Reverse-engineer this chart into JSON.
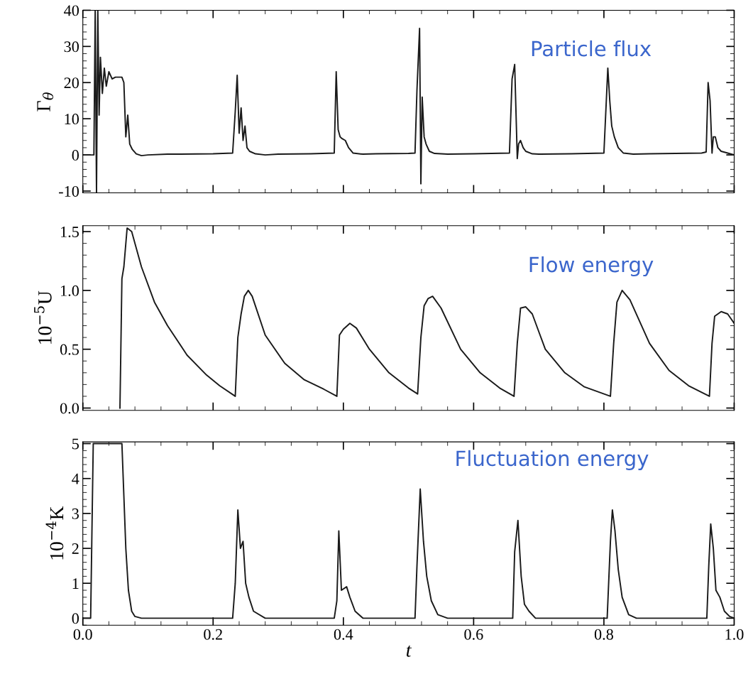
{
  "chart_data": [
    {
      "type": "line",
      "ylabel": "Γ$_{θ}$",
      "annotations": [
        "Particle flux"
      ],
      "xlim": [
        0,
        1
      ],
      "ylim": [
        -10.5,
        40
      ],
      "xticks": [
        {
          "value": 0,
          "label": null
        },
        {
          "value": 0.2,
          "label": null
        },
        {
          "value": 0.4,
          "label": null
        },
        {
          "value": 0.6,
          "label": null
        },
        {
          "value": 0.8,
          "label": null
        },
        {
          "value": 1,
          "label": null
        }
      ],
      "yticks": [
        -10,
        0,
        10,
        20,
        30,
        40
      ],
      "tick_labels": "y",
      "grid": false,
      "legend": false,
      "series": [
        {
          "color": "#1a1a1a",
          "x": [
            0,
            0.017,
            0.019,
            0.021,
            0.023,
            0.025,
            0.027,
            0.03,
            0.033,
            0.036,
            0.04,
            0.045,
            0.05,
            0.055,
            0.06,
            0.063,
            0.066,
            0.069,
            0.072,
            0.076,
            0.082,
            0.09,
            0.1,
            0.13,
            0.2,
            0.23,
            0.234,
            0.237,
            0.24,
            0.243,
            0.246,
            0.249,
            0.252,
            0.256,
            0.265,
            0.28,
            0.3,
            0.35,
            0.386,
            0.389,
            0.392,
            0.395,
            0.398,
            0.403,
            0.408,
            0.415,
            0.43,
            0.45,
            0.5,
            0.51,
            0.513,
            0.517,
            0.519,
            0.521,
            0.524,
            0.527,
            0.532,
            0.54,
            0.56,
            0.6,
            0.655,
            0.659,
            0.663,
            0.667,
            0.669,
            0.672,
            0.676,
            0.68,
            0.69,
            0.7,
            0.75,
            0.8,
            0.806,
            0.809,
            0.812,
            0.816,
            0.822,
            0.83,
            0.845,
            0.87,
            0.95,
            0.957,
            0.96,
            0.963,
            0.966,
            0.968,
            0.971,
            0.975,
            0.98,
            0.99,
            1.0
          ],
          "values": [
            0,
            0,
            40,
            -10.5,
            40,
            11,
            27,
            17,
            24,
            19,
            23,
            21,
            21.5,
            21.5,
            21.5,
            20,
            5,
            11,
            3,
            1.5,
            0.3,
            -0.2,
            0,
            0.2,
            0.3,
            0.5,
            12,
            22,
            6,
            13,
            4,
            8,
            2,
            1,
            0.3,
            0,
            0.2,
            0.3,
            0.5,
            23,
            7,
            5,
            4.5,
            4,
            2,
            0.5,
            0.2,
            0.3,
            0.4,
            0.5,
            18,
            35,
            -8,
            16,
            5,
            3,
            1,
            0.4,
            0.2,
            0.3,
            0.5,
            21,
            25,
            -1,
            3,
            4,
            2,
            1,
            0.3,
            0.2,
            0.3,
            0.5,
            24,
            15,
            8,
            5,
            2,
            0.5,
            0.2,
            0.3,
            0.5,
            0.8,
            20,
            15,
            0.5,
            5,
            5,
            2,
            1,
            0.5,
            0
          ]
        }
      ]
    },
    {
      "type": "line",
      "ylabel": "10$^{−5}$U",
      "annotations": [
        "Flow energy"
      ],
      "xlim": [
        0,
        1
      ],
      "ylim": [
        -0.02,
        1.55
      ],
      "xticks": [
        {
          "value": 0,
          "label": null
        },
        {
          "value": 0.2,
          "label": null
        },
        {
          "value": 0.4,
          "label": null
        },
        {
          "value": 0.6,
          "label": null
        },
        {
          "value": 0.8,
          "label": null
        },
        {
          "value": 1,
          "label": null
        }
      ],
      "yticks": [
        {
          "value": 0,
          "label": "0.0"
        },
        {
          "value": 0.5,
          "label": "0.5"
        },
        {
          "value": 1,
          "label": "1.0"
        },
        {
          "value": 1.5,
          "label": "1.5"
        }
      ],
      "tick_labels": "y",
      "grid": false,
      "legend": false,
      "series": [
        {
          "color": "#1a1a1a",
          "x": [
            0.057,
            0.06,
            0.063,
            0.068,
            0.075,
            0.09,
            0.11,
            0.13,
            0.16,
            0.19,
            0.21,
            0.234,
            0.238,
            0.243,
            0.248,
            0.254,
            0.26,
            0.28,
            0.31,
            0.34,
            0.37,
            0.39,
            0.394,
            0.4,
            0.41,
            0.42,
            0.44,
            0.47,
            0.5,
            0.514,
            0.519,
            0.524,
            0.53,
            0.537,
            0.55,
            0.58,
            0.61,
            0.64,
            0.662,
            0.667,
            0.672,
            0.68,
            0.69,
            0.71,
            0.74,
            0.77,
            0.81,
            0.815,
            0.82,
            0.828,
            0.84,
            0.87,
            0.9,
            0.93,
            0.962,
            0.966,
            0.97,
            0.98,
            0.99,
            1.0
          ],
          "values": [
            0,
            1.1,
            1.2,
            1.53,
            1.5,
            1.2,
            0.9,
            0.7,
            0.45,
            0.28,
            0.19,
            0.1,
            0.6,
            0.8,
            0.95,
            1.0,
            0.95,
            0.62,
            0.38,
            0.24,
            0.16,
            0.1,
            0.62,
            0.67,
            0.72,
            0.68,
            0.5,
            0.3,
            0.17,
            0.12,
            0.6,
            0.87,
            0.93,
            0.95,
            0.85,
            0.5,
            0.3,
            0.17,
            0.1,
            0.55,
            0.85,
            0.86,
            0.8,
            0.5,
            0.3,
            0.18,
            0.1,
            0.55,
            0.9,
            1.0,
            0.92,
            0.55,
            0.32,
            0.19,
            0.1,
            0.55,
            0.78,
            0.82,
            0.8,
            0.72
          ]
        }
      ]
    },
    {
      "type": "line",
      "ylabel": "10$^{−4}$K",
      "xlabel": "t",
      "annotations": [
        "Fluctuation energy"
      ],
      "xlim": [
        0,
        1
      ],
      "ylim": [
        -0.2,
        5.05
      ],
      "xticks": [
        {
          "value": 0,
          "label": "0.0"
        },
        {
          "value": 0.2,
          "label": "0.2"
        },
        {
          "value": 0.4,
          "label": "0.4"
        },
        {
          "value": 0.6,
          "label": "0.6"
        },
        {
          "value": 0.8,
          "label": "0.8"
        },
        {
          "value": 1,
          "label": "1.0"
        }
      ],
      "yticks": [
        0,
        1,
        2,
        3,
        4,
        5
      ],
      "grid": false,
      "legend": false,
      "series": [
        {
          "color": "#1a1a1a",
          "x": [
            0,
            0.012,
            0.016,
            0.06,
            0.063,
            0.066,
            0.07,
            0.075,
            0.08,
            0.09,
            0.12,
            0.2,
            0.23,
            0.234,
            0.238,
            0.242,
            0.246,
            0.25,
            0.255,
            0.262,
            0.28,
            0.35,
            0.386,
            0.39,
            0.393,
            0.397,
            0.405,
            0.41,
            0.418,
            0.43,
            0.5,
            0.51,
            0.513,
            0.518,
            0.523,
            0.528,
            0.535,
            0.545,
            0.56,
            0.65,
            0.66,
            0.663,
            0.668,
            0.673,
            0.678,
            0.685,
            0.695,
            0.75,
            0.805,
            0.81,
            0.813,
            0.817,
            0.822,
            0.828,
            0.838,
            0.85,
            0.95,
            0.958,
            0.961,
            0.964,
            0.968,
            0.972,
            0.978,
            0.985,
            0.993,
            1.0
          ],
          "values": [
            0,
            0,
            5,
            5,
            3.5,
            2,
            0.8,
            0.2,
            0.05,
            0,
            0,
            0,
            0,
            1.0,
            3.1,
            2.0,
            2.2,
            1.0,
            0.6,
            0.2,
            0,
            0,
            0,
            0.5,
            2.5,
            0.8,
            0.9,
            0.6,
            0.2,
            0,
            0,
            0,
            1.5,
            3.7,
            2.2,
            1.2,
            0.5,
            0.1,
            0,
            0,
            0,
            1.9,
            2.8,
            1.2,
            0.4,
            0.2,
            0,
            0,
            0,
            2.2,
            3.1,
            2.5,
            1.4,
            0.6,
            0.1,
            0,
            0,
            0,
            1.5,
            2.7,
            2.0,
            0.8,
            0.6,
            0.2,
            0.05,
            0
          ]
        }
      ]
    }
  ]
}
